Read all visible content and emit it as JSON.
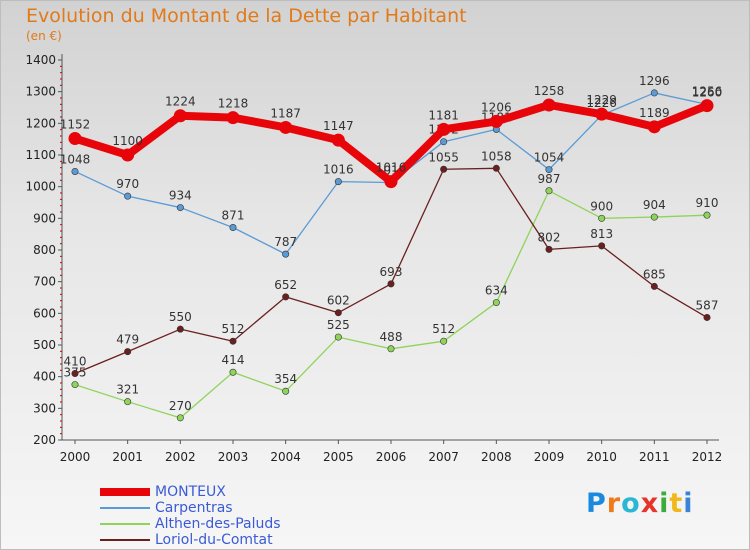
{
  "header": {
    "title": "Evolution du Montant de la Dette par Habitant",
    "unit": "(en €)"
  },
  "logo": {
    "text": "Proxiti",
    "colors": [
      "#1a8ae0",
      "#f07a1a",
      "#2ab7d6",
      "#e6342a",
      "#3caa3c",
      "#f0b81a",
      "#3c82d6"
    ]
  },
  "chart_data": {
    "type": "line",
    "x": [
      "2000",
      "2001",
      "2002",
      "2003",
      "2004",
      "2005",
      "2006",
      "2007",
      "2008",
      "2009",
      "2010",
      "2011",
      "2012"
    ],
    "ylim": [
      200,
      1400
    ],
    "yticks": [
      "200",
      "300",
      "400",
      "500",
      "600",
      "700",
      "800",
      "900",
      "1000",
      "1100",
      "1200",
      "1300",
      "1400"
    ],
    "grid": false,
    "legend_position": "bottom",
    "series": [
      {
        "name": "Carpentras",
        "color": "#5b9bd5",
        "values": [
          1048,
          970,
          934,
          871,
          787,
          1016,
          1013,
          1142,
          1181,
          1054,
          1226,
          1296,
          1260
        ],
        "labels": [
          "1048",
          "970",
          "934",
          "871",
          "787",
          "1016",
          "1013",
          "1142",
          "1181",
          "1054",
          "1226",
          "1296",
          "1260"
        ]
      },
      {
        "name": "Althen-des-Paluds",
        "color": "#8fd45a",
        "values": [
          375,
          321,
          270,
          414,
          354,
          525,
          488,
          512,
          634,
          987,
          900,
          904,
          910
        ],
        "labels": [
          "375",
          "321",
          "270",
          "414",
          "354",
          "525",
          "488",
          "512",
          "634",
          "987",
          "900",
          "904",
          "910"
        ]
      },
      {
        "name": "Loriol-du-Comtat",
        "color": "#6b1f1f",
        "values": [
          410,
          479,
          550,
          512,
          652,
          602,
          693,
          1055,
          1058,
          802,
          813,
          685,
          587
        ],
        "labels": [
          "410",
          "479",
          "550",
          "512",
          "652",
          "602",
          "693",
          "1055",
          "1058",
          "802",
          "813",
          "685",
          "587"
        ]
      },
      {
        "name": "MONTEUX",
        "color": "#e8050a",
        "values": [
          1152,
          1100,
          1224,
          1218,
          1187,
          1147,
          1016,
          1181,
          1206,
          1258,
          1229,
          1189,
          1256
        ],
        "labels": [
          "1152",
          "1100",
          "1224",
          "1218",
          "1187",
          "1147",
          "1016",
          "1181",
          "1206",
          "1258",
          "1229",
          "1189",
          "1256"
        ]
      }
    ]
  }
}
